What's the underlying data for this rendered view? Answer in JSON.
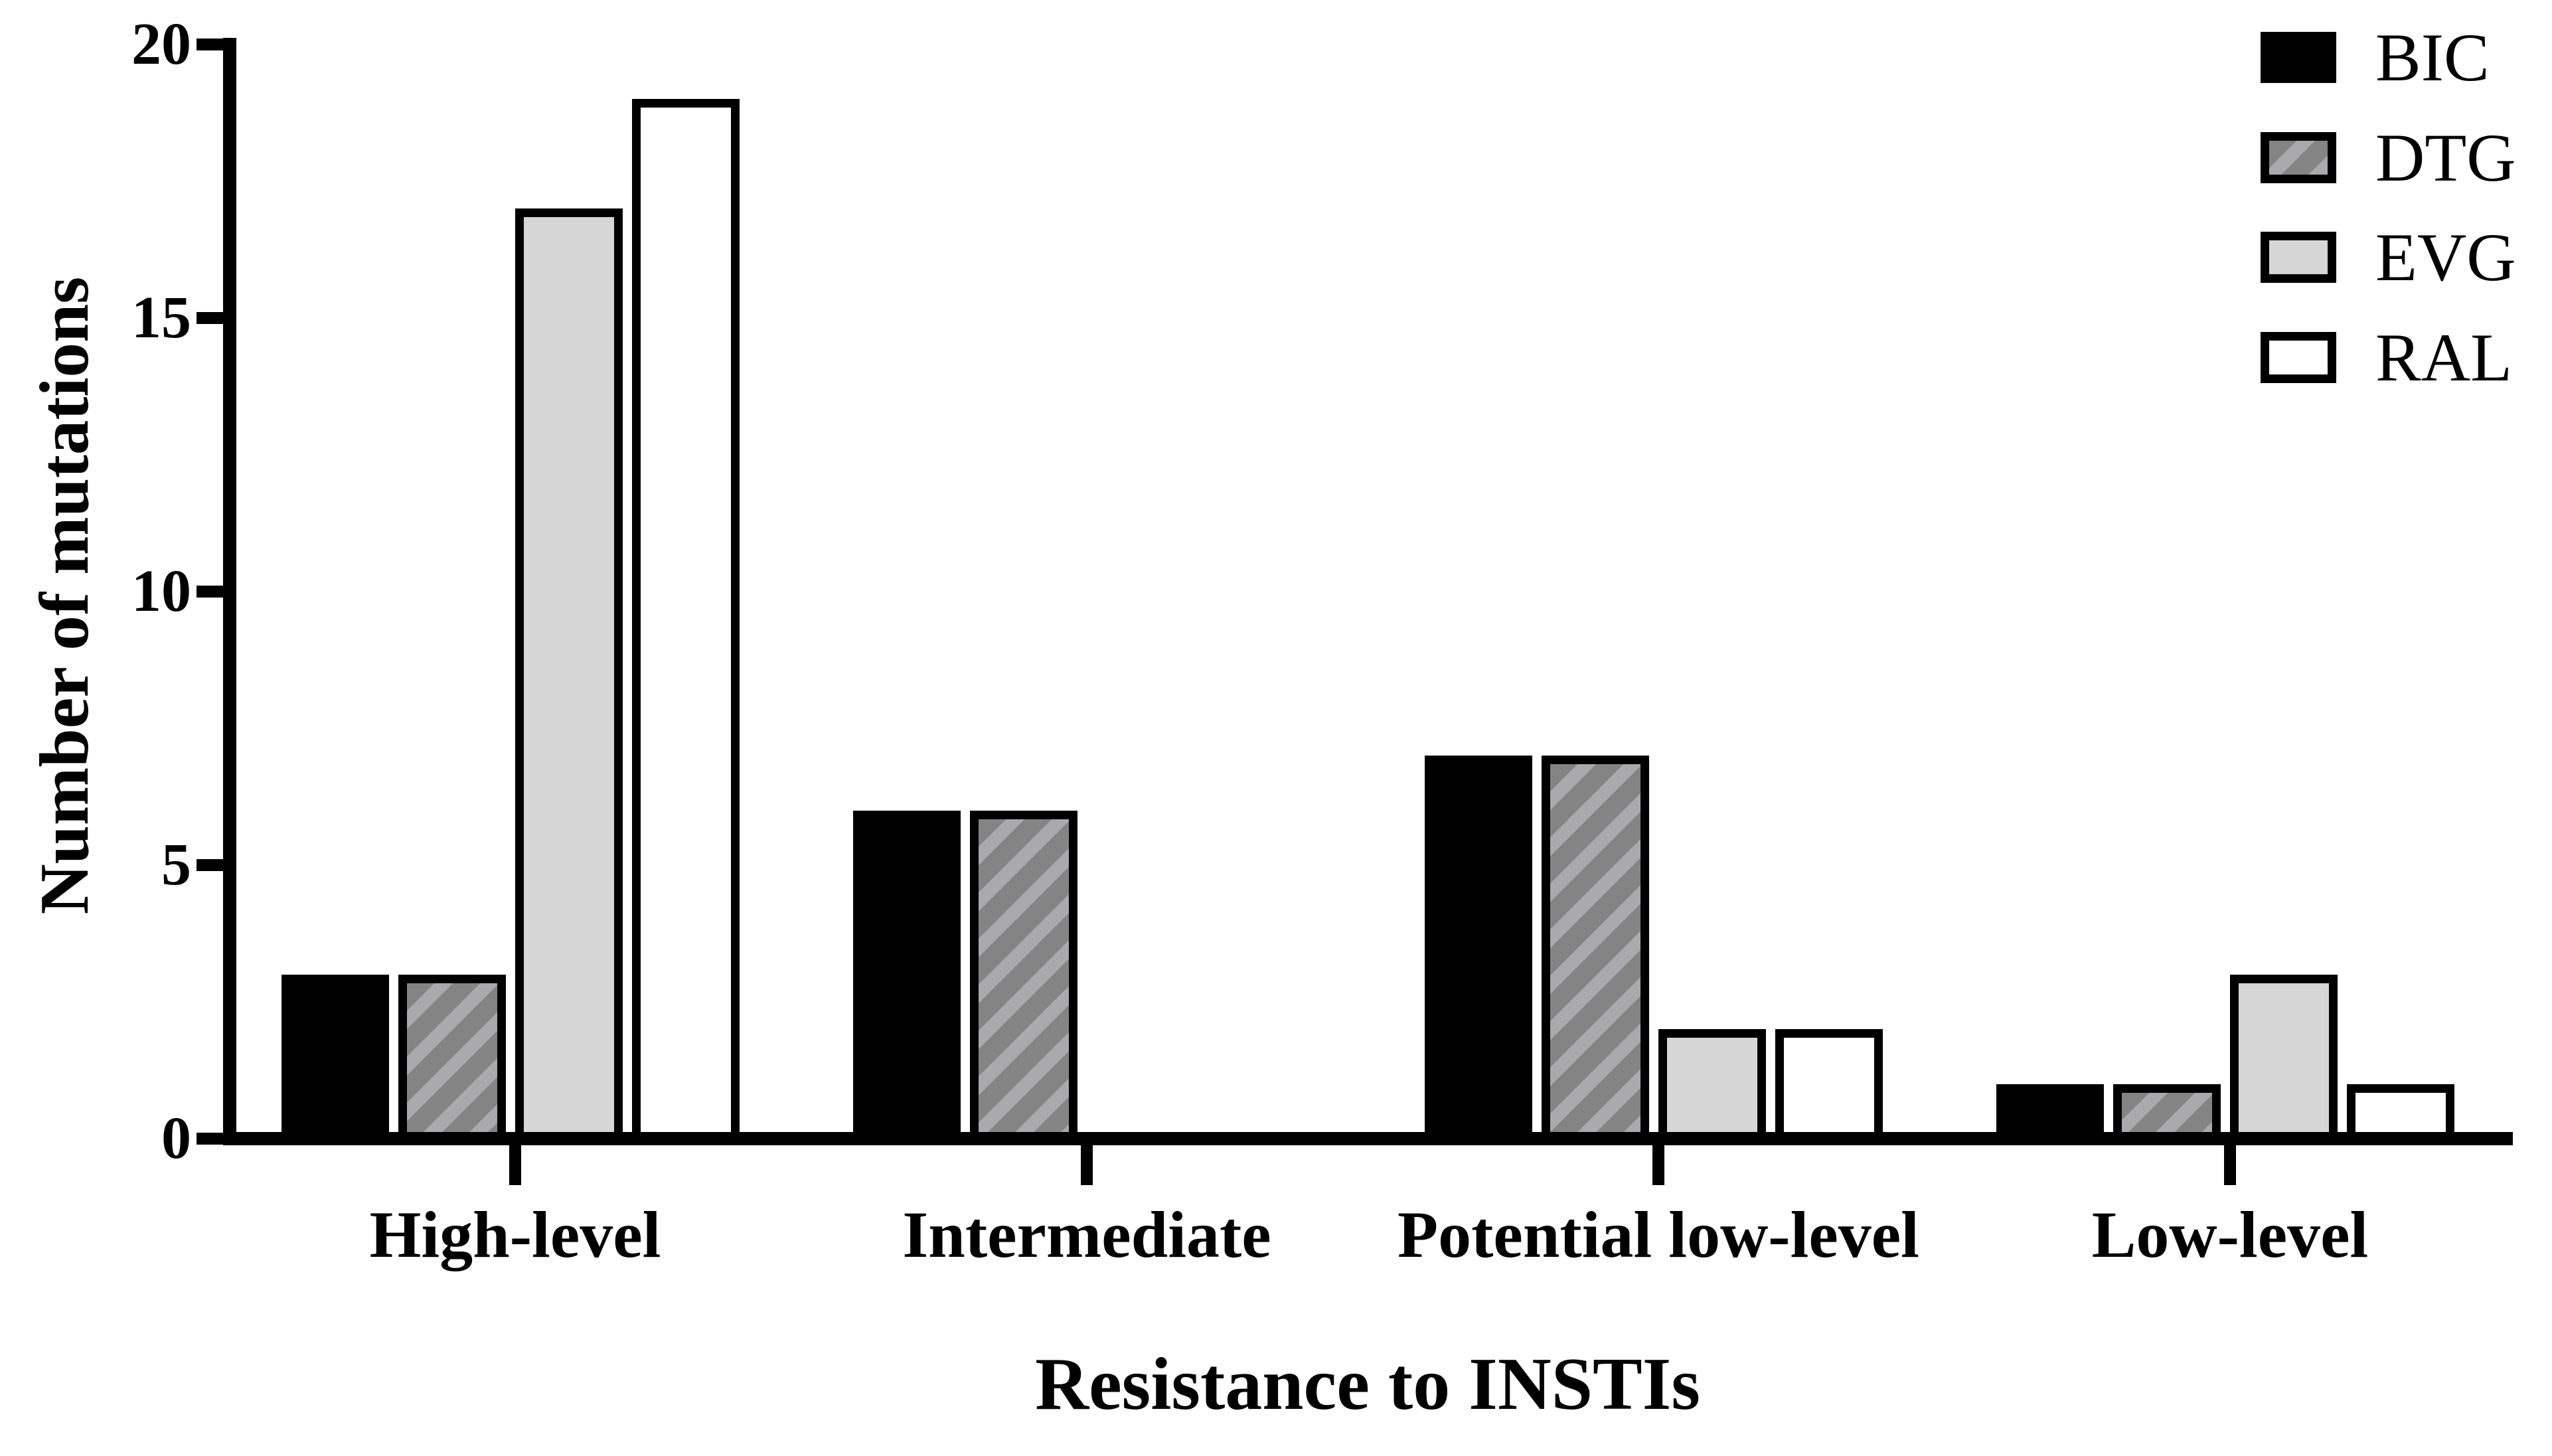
{
  "chart_data": {
    "type": "bar",
    "title": "",
    "xlabel": "Resistance to INSTIs",
    "ylabel": "Number of mutations",
    "categories": [
      "High-level",
      "Intermediate",
      "Potential low-level",
      "Low-level"
    ],
    "series": [
      {
        "name": "BIC",
        "fill": "#000000",
        "pattern": "solid",
        "values": [
          3,
          6,
          7,
          1
        ]
      },
      {
        "name": "DTG",
        "fill": "#848484",
        "pattern": "diagonal-stripes",
        "stripe_color": "#a9a9ae",
        "values": [
          3,
          6,
          7,
          1
        ]
      },
      {
        "name": "EVG",
        "fill": "#d6d6d6",
        "pattern": "solid",
        "values": [
          17,
          0,
          2,
          3
        ]
      },
      {
        "name": "RAL",
        "fill": "#ffffff",
        "pattern": "solid",
        "values": [
          19,
          0,
          2,
          1
        ]
      }
    ],
    "ylim": [
      0,
      20
    ],
    "yticks": [
      0,
      5,
      10,
      15,
      20
    ],
    "grid": false,
    "legend_position": "top-right",
    "bar_edge_color": "#000000",
    "background_color": "#ffffff"
  }
}
